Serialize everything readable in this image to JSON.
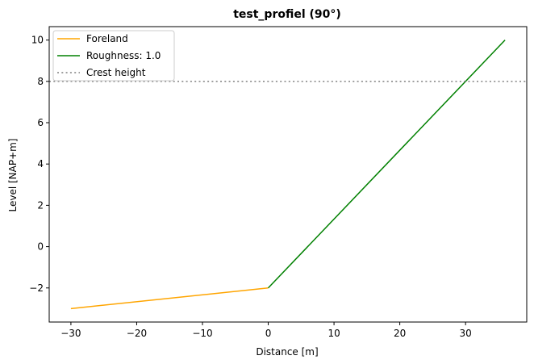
{
  "chart_data": {
    "type": "line",
    "title": "test_profiel (90°)",
    "xlabel": "Distance [m]",
    "ylabel": "Level [NAP+m]",
    "xlim": [
      -33.3,
      39.3
    ],
    "ylim": [
      -3.65,
      10.65
    ],
    "x_ticks": [
      -30,
      -20,
      -10,
      0,
      10,
      20,
      30
    ],
    "x_tick_labels": [
      "−30",
      "−20",
      "−10",
      "0",
      "10",
      "20",
      "30"
    ],
    "y_ticks": [
      -2,
      0,
      2,
      4,
      6,
      8,
      10
    ],
    "y_tick_labels": [
      "−2",
      "0",
      "2",
      "4",
      "6",
      "8",
      "10"
    ],
    "grid": false,
    "legend_placement": "upper-left",
    "series": [
      {
        "name": "Foreland",
        "color": "#ffa500",
        "style": "solid",
        "x": [
          -30,
          0
        ],
        "y": [
          -3,
          -2
        ]
      },
      {
        "name": "Roughness: 1.0",
        "color": "#008000",
        "style": "solid",
        "x": [
          0,
          36
        ],
        "y": [
          -2,
          10
        ]
      },
      {
        "name": "Crest height",
        "color": "#808080",
        "style": "dotted",
        "hline": 8
      }
    ]
  }
}
